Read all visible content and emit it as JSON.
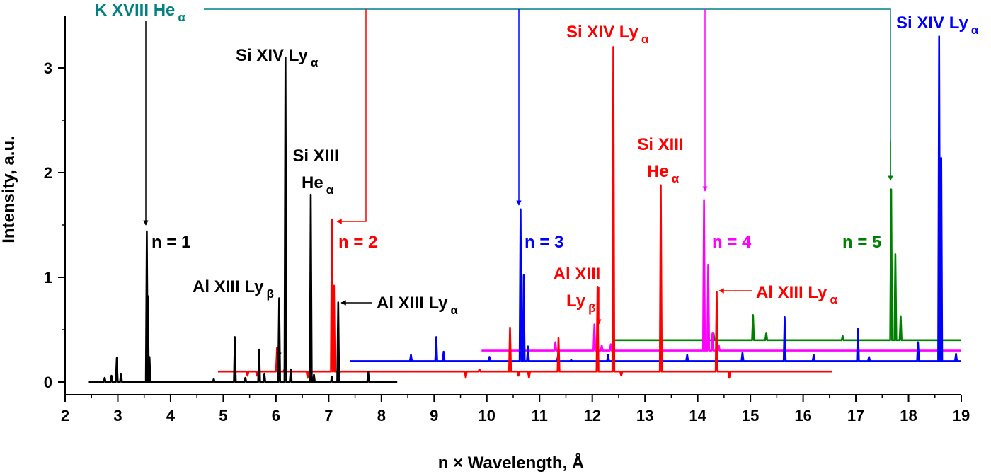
{
  "chart_data": {
    "type": "line",
    "xlabel": "n × Wavelength, Å",
    "ylabel": "Intensity, a.u.",
    "xlim": [
      2,
      19
    ],
    "ylim": [
      -0.1,
      3.5
    ],
    "x_ticks": [
      "2",
      "3",
      "4",
      "5",
      "6",
      "7",
      "8",
      "9",
      "10",
      "11",
      "12",
      "13",
      "14",
      "15",
      "16",
      "17",
      "18",
      "19"
    ],
    "y_ticks": [
      "0",
      "1",
      "2",
      "3"
    ],
    "grid": false,
    "series": [
      {
        "name": "n = 1",
        "color": "#000000",
        "offset": 0.0,
        "range": [
          2.45,
          8.3
        ],
        "peaks": [
          [
            2.75,
            0.04
          ],
          [
            2.88,
            0.06
          ],
          [
            2.98,
            0.23
          ],
          [
            3.06,
            0.08
          ],
          [
            3.55,
            1.44
          ],
          [
            3.57,
            0.82
          ],
          [
            3.6,
            0.24
          ],
          [
            4.82,
            0.03
          ],
          [
            5.22,
            0.43
          ],
          [
            5.42,
            0.04
          ],
          [
            5.68,
            0.31
          ],
          [
            5.78,
            0.08
          ],
          [
            6.06,
            0.8
          ],
          [
            6.18,
            3.1
          ],
          [
            6.28,
            0.12
          ],
          [
            6.66,
            1.79
          ],
          [
            6.72,
            0.07
          ],
          [
            7.06,
            0.05
          ],
          [
            7.18,
            0.76
          ],
          [
            7.75,
            0.1
          ]
        ]
      },
      {
        "name": "n = 2",
        "color": "#ff0000",
        "offset": 0.1,
        "range": [
          4.9,
          16.55
        ],
        "peaks": [
          [
            5.46,
            0.06
          ],
          [
            5.64,
            0.06
          ],
          [
            6.02,
            0.33
          ],
          [
            6.16,
            0.12
          ],
          [
            6.6,
            0.04
          ],
          [
            7.06,
            1.55
          ],
          [
            7.1,
            0.92
          ],
          [
            7.2,
            0.08
          ],
          [
            9.6,
            0.04
          ],
          [
            9.86,
            0.12
          ],
          [
            10.44,
            0.52
          ],
          [
            10.6,
            0.06
          ],
          [
            10.8,
            0.04
          ],
          [
            11.36,
            0.42
          ],
          [
            12.1,
            0.91
          ],
          [
            12.4,
            3.2
          ],
          [
            12.55,
            0.06
          ],
          [
            13.3,
            1.88
          ],
          [
            13.36,
            0.1
          ],
          [
            14.36,
            0.86
          ],
          [
            14.6,
            0.04
          ],
          [
            15.5,
            0.1
          ]
        ]
      },
      {
        "name": "n = 3",
        "color": "#0000ff",
        "offset": 0.2,
        "range": [
          7.4,
          19.0
        ],
        "peaks": [
          [
            8.56,
            0.26
          ],
          [
            9.04,
            0.43
          ],
          [
            9.18,
            0.29
          ],
          [
            10.05,
            0.24
          ],
          [
            10.64,
            1.65
          ],
          [
            10.7,
            1.02
          ],
          [
            10.78,
            0.34
          ],
          [
            11.35,
            0.25
          ],
          [
            11.6,
            0.21
          ],
          [
            12.3,
            0.26
          ],
          [
            13.8,
            0.26
          ],
          [
            14.85,
            0.28
          ],
          [
            15.65,
            0.62
          ],
          [
            16.2,
            0.26
          ],
          [
            17.04,
            0.51
          ],
          [
            17.25,
            0.24
          ],
          [
            18.18,
            0.38
          ],
          [
            18.58,
            3.3
          ],
          [
            18.62,
            2.14
          ],
          [
            18.9,
            0.27
          ]
        ]
      },
      {
        "name": "n = 4",
        "color": "#ff00ff",
        "offset": 0.3,
        "range": [
          9.9,
          19.0
        ],
        "peaks": [
          [
            11.3,
            0.38
          ],
          [
            12.04,
            0.55
          ],
          [
            12.18,
            0.35
          ],
          [
            12.35,
            0.36
          ],
          [
            14.12,
            1.74
          ],
          [
            14.2,
            1.12
          ],
          [
            14.28,
            0.47
          ],
          [
            14.4,
            0.35
          ]
        ]
      },
      {
        "name": "n = 5",
        "color": "#008000",
        "offset": 0.4,
        "range": [
          12.4,
          19.0
        ],
        "peaks": [
          [
            14.3,
            0.47
          ],
          [
            15.05,
            0.64
          ],
          [
            15.3,
            0.47
          ],
          [
            16.75,
            0.44
          ],
          [
            17.67,
            1.84
          ],
          [
            17.75,
            1.22
          ],
          [
            17.85,
            0.63
          ]
        ]
      }
    ],
    "annotations": [
      {
        "main": "K XVIII He",
        "sub": "α",
        "color": "#008080"
      },
      {
        "main": "Si XIV Ly",
        "sub": "α",
        "color": "#000000"
      },
      {
        "main": "Si XIII",
        "sub": "",
        "color": "#000000"
      },
      {
        "main": "He",
        "sub": "α",
        "color": "#000000"
      },
      {
        "main": "n = 1",
        "sub": "",
        "color": "#000000"
      },
      {
        "main": "Al XIII Ly",
        "sub": "β",
        "color": "#000000"
      },
      {
        "main": "Al XIII Ly",
        "sub": "α",
        "color": "#000000"
      },
      {
        "main": "n = 2",
        "sub": "",
        "color": "#ff0000"
      },
      {
        "main": "Si XIV Ly",
        "sub": "α",
        "color": "#ff0000"
      },
      {
        "main": "Si XIII",
        "sub": "",
        "color": "#ff0000"
      },
      {
        "main": "He",
        "sub": "α",
        "color": "#ff0000"
      },
      {
        "main": "Al XIII",
        "sub": "",
        "color": "#ff0000"
      },
      {
        "main": "Ly",
        "sub": "β",
        "color": "#ff0000"
      },
      {
        "main": "Al XIII Ly",
        "sub": "α",
        "color": "#ff0000"
      },
      {
        "main": "n = 3",
        "sub": "",
        "color": "#0000ff"
      },
      {
        "main": "n = 4",
        "sub": "",
        "color": "#ff00ff"
      },
      {
        "main": "n = 5",
        "sub": "",
        "color": "#008000"
      },
      {
        "main": "Si XIV Ly",
        "sub": "α",
        "color": "#0000ff"
      }
    ]
  }
}
